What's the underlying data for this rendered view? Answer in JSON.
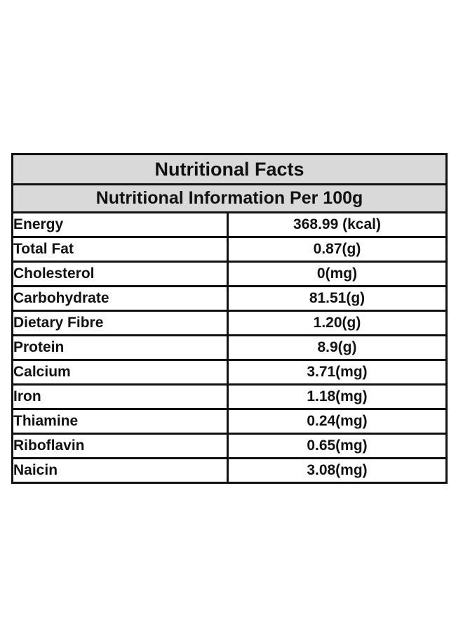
{
  "table": {
    "title": "Nutritional Facts",
    "subtitle": "Nutritional Information Per 100g",
    "rows": [
      [
        "Energy",
        "368.99 (kcal)"
      ],
      [
        "Total Fat",
        "0.87(g)"
      ],
      [
        "Cholesterol",
        "0(mg)"
      ],
      [
        "Carbohydrate",
        "81.51(g)"
      ],
      [
        "Dietary Fibre",
        "1.20(g)"
      ],
      [
        "Protein",
        "8.9(g)"
      ],
      [
        "Calcium",
        "3.71(mg)"
      ],
      [
        "Iron",
        "1.18(mg)"
      ],
      [
        "Thiamine",
        "0.24(mg)"
      ],
      [
        "Riboflavin",
        "0.65(mg)"
      ],
      [
        "Naicin",
        "3.08(mg)"
      ]
    ]
  }
}
